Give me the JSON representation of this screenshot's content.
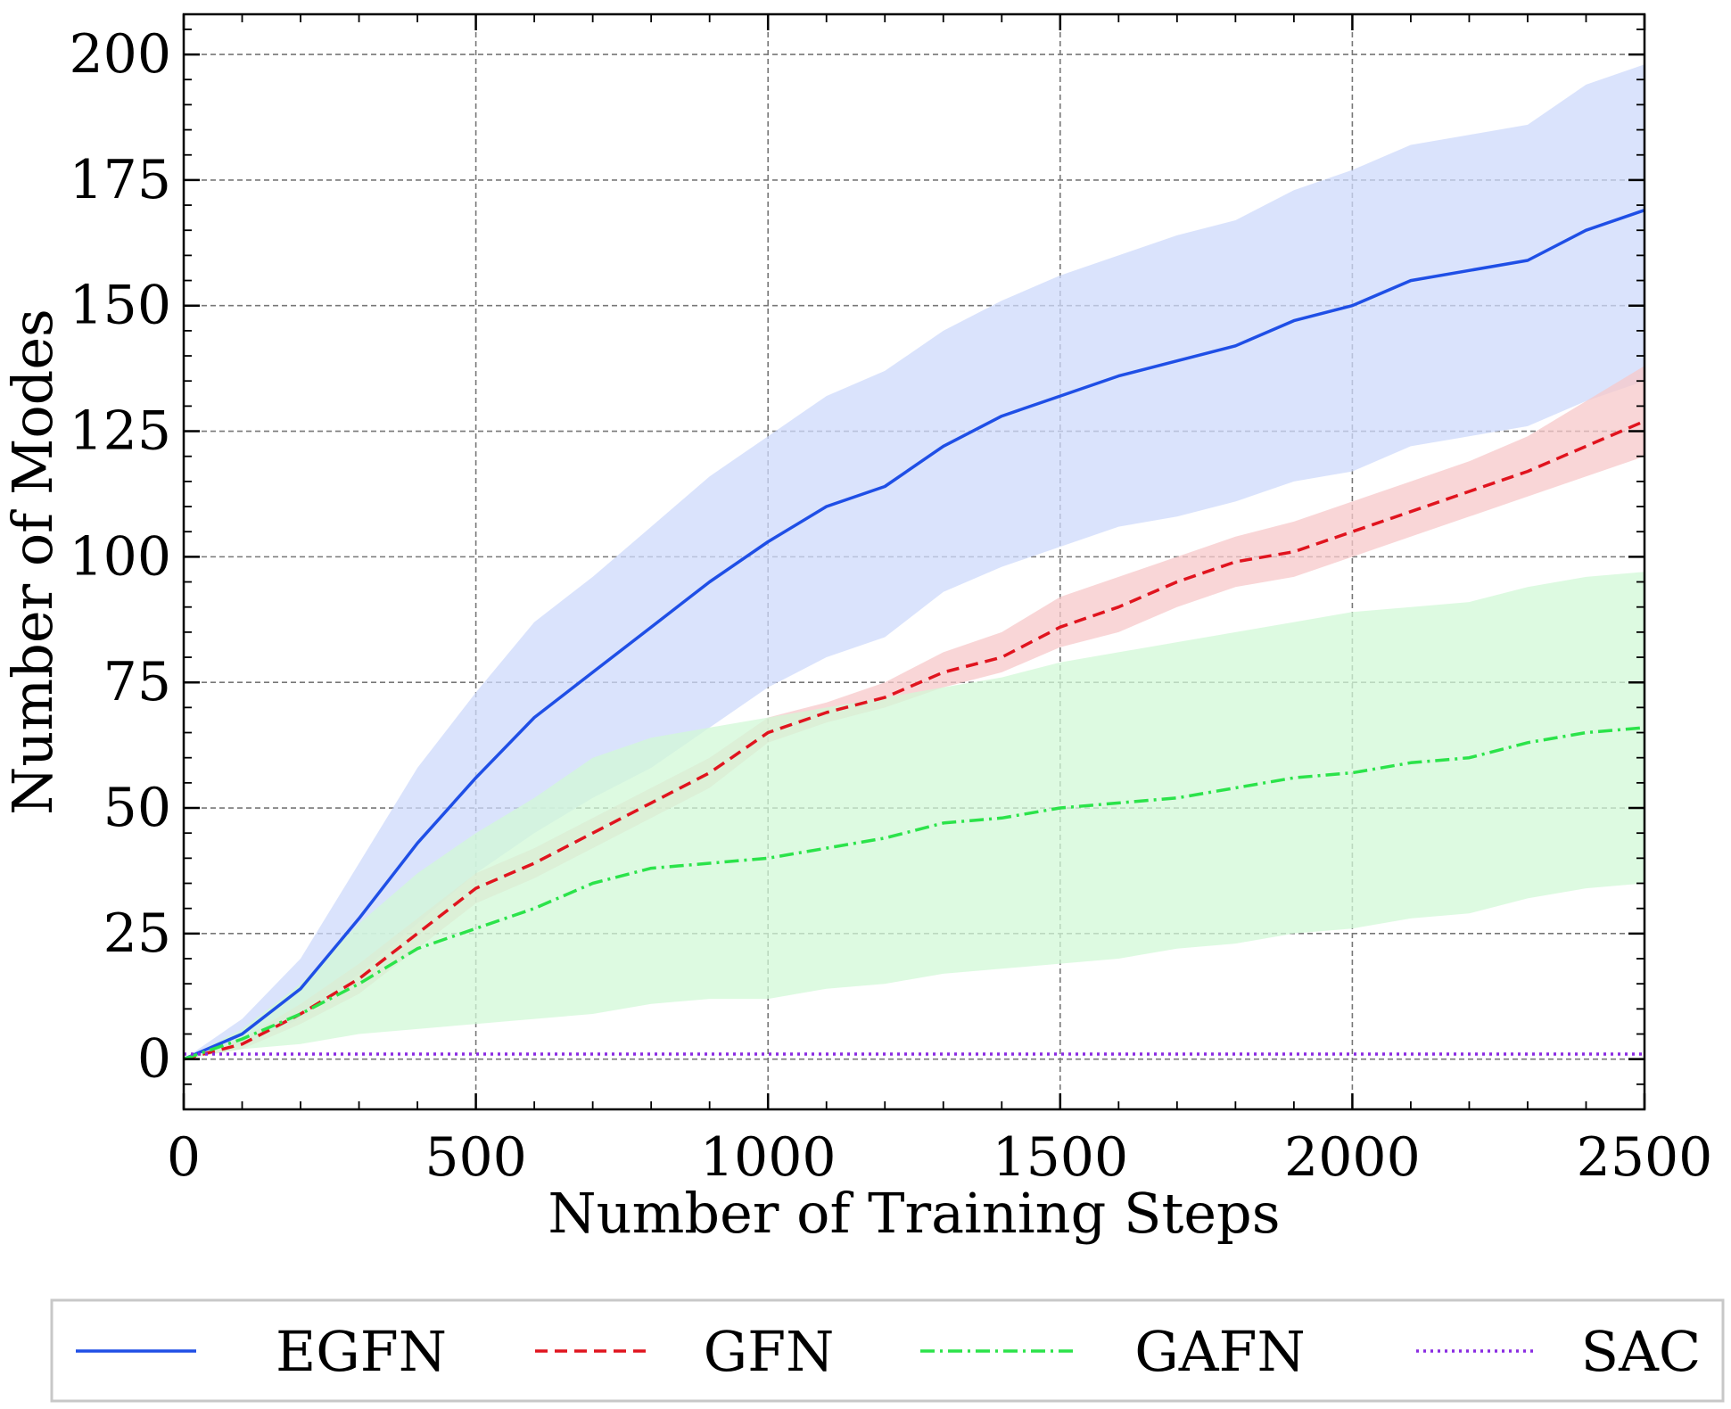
{
  "chart_data": {
    "type": "line",
    "title": "",
    "xlabel": "Number of Training Steps",
    "ylabel": "Number of Modes",
    "xlim": [
      0,
      2500
    ],
    "ylim": [
      -10,
      208
    ],
    "xticks": [
      0,
      500,
      1000,
      1500,
      2000,
      2500
    ],
    "yticks": [
      0,
      25,
      50,
      75,
      100,
      125,
      150,
      175,
      200
    ],
    "xtick_labels": [
      "0",
      "500",
      "1000",
      "1500",
      "2000",
      "2500"
    ],
    "ytick_labels": [
      "0",
      "25",
      "50",
      "75",
      "100",
      "125",
      "150",
      "175",
      "200"
    ],
    "grid": true,
    "legend_position": "bottom, outside plot",
    "x": [
      0,
      100,
      200,
      300,
      400,
      500,
      600,
      700,
      800,
      900,
      1000,
      1100,
      1200,
      1300,
      1400,
      1500,
      1600,
      1700,
      1800,
      1900,
      2000,
      2100,
      2200,
      2300,
      2400,
      2500
    ],
    "series": [
      {
        "name": "EGFN",
        "color": "#1f4fe6",
        "band_color": "#cdd9fb",
        "style": "solid",
        "values": [
          0,
          5,
          14,
          28,
          43,
          56,
          68,
          77,
          86,
          95,
          103,
          110,
          114,
          122,
          128,
          132,
          136,
          139,
          142,
          147,
          150,
          155,
          157,
          159,
          165,
          169
        ],
        "lower": [
          0,
          3,
          8,
          17,
          27,
          37,
          45,
          52,
          58,
          66,
          74,
          80,
          84,
          93,
          98,
          102,
          106,
          108,
          111,
          115,
          117,
          122,
          124,
          126,
          131,
          135
        ],
        "upper": [
          0,
          8,
          20,
          39,
          58,
          73,
          87,
          96,
          106,
          116,
          124,
          132,
          137,
          145,
          151,
          156,
          160,
          164,
          167,
          173,
          177,
          182,
          184,
          186,
          194,
          198
        ]
      },
      {
        "name": "GFN",
        "color": "#e0141e",
        "band_color": "#f7c8ca",
        "style": "dashed",
        "values": [
          0,
          3,
          9,
          16,
          25,
          34,
          39,
          45,
          51,
          57,
          65,
          69,
          72,
          77,
          80,
          86,
          90,
          95,
          99,
          101,
          105,
          109,
          113,
          117,
          122,
          127
        ],
        "lower": [
          0,
          2,
          7,
          13,
          22,
          31,
          36,
          42,
          48,
          54,
          63,
          67,
          70,
          74,
          77,
          82,
          85,
          90,
          94,
          96,
          100,
          104,
          108,
          112,
          116,
          120
        ],
        "upper": [
          0,
          4,
          11,
          19,
          28,
          37,
          42,
          48,
          54,
          60,
          68,
          71,
          75,
          81,
          85,
          92,
          96,
          100,
          104,
          107,
          111,
          115,
          119,
          124,
          131,
          138
        ]
      },
      {
        "name": "GAFN",
        "color": "#2be34a",
        "band_color": "#d2f8d7",
        "style": "dashdot",
        "values": [
          0,
          4,
          9,
          15,
          22,
          26,
          30,
          35,
          38,
          39,
          40,
          42,
          44,
          47,
          48,
          50,
          51,
          52,
          54,
          56,
          57,
          59,
          60,
          63,
          65,
          66
        ],
        "lower": [
          0,
          2,
          3,
          5,
          6,
          7,
          8,
          9,
          11,
          12,
          12,
          14,
          15,
          17,
          18,
          19,
          20,
          22,
          23,
          25,
          26,
          28,
          29,
          32,
          34,
          35
        ],
        "upper": [
          0,
          6,
          15,
          27,
          37,
          45,
          52,
          60,
          64,
          66,
          68,
          70,
          72,
          74,
          76,
          79,
          81,
          83,
          85,
          87,
          89,
          90,
          91,
          94,
          96,
          97
        ]
      },
      {
        "name": "SAC",
        "color": "#8a2be2",
        "style": "dotted",
        "values": [
          1,
          1,
          1,
          1,
          1,
          1,
          1,
          1,
          1,
          1,
          1,
          1,
          1,
          1,
          1,
          1,
          1,
          1,
          1,
          1,
          1,
          1,
          1,
          1,
          1,
          1
        ]
      }
    ]
  }
}
